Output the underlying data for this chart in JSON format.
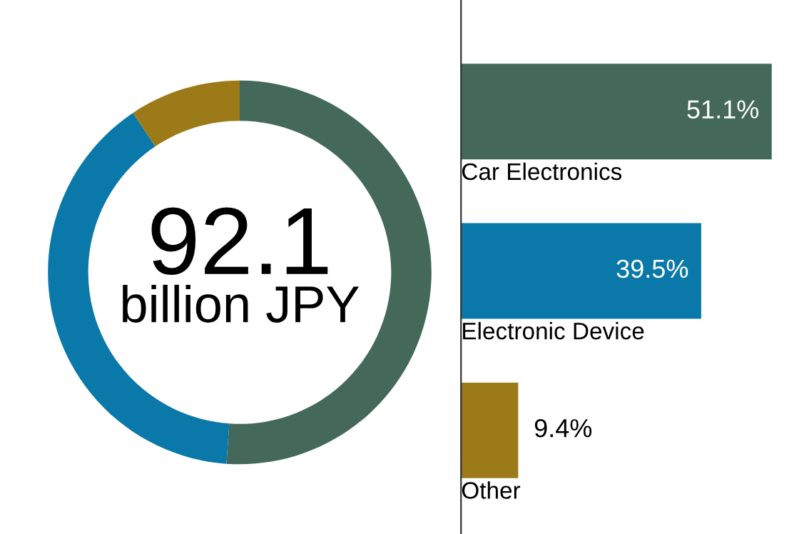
{
  "chart_data": [
    {
      "type": "donut",
      "categories": [
        null,
        null,
        null
      ],
      "values": [
        51.1,
        39.5,
        9.4
      ],
      "colors": [
        "#44685a",
        "#0a78a8",
        "#9c7a17"
      ],
      "annotations": [
        "92.1",
        "billion JPY"
      ]
    },
    {
      "type": "bar",
      "orientation": "horizontal",
      "categories": [
        "Car Electronics",
        "Electronic Device",
        "Other"
      ],
      "values": [
        51.1,
        39.5,
        9.4
      ],
      "value_labels": [
        "51.1%",
        "39.5%",
        "9.4%"
      ],
      "colors": [
        "#44685a",
        "#0a78a8",
        "#9c7a17"
      ]
    }
  ]
}
